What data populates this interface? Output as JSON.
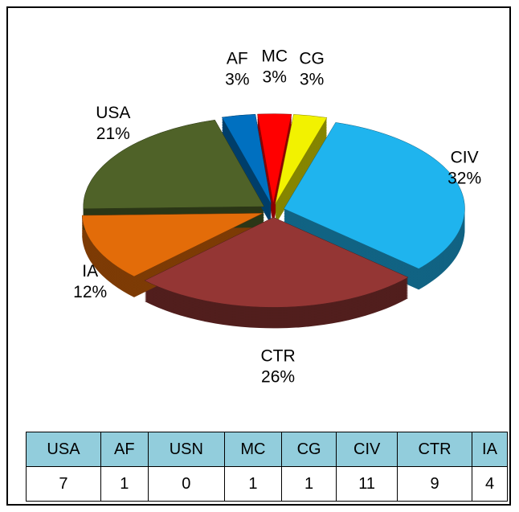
{
  "chart_data": {
    "type": "pie",
    "categories": [
      "MC",
      "CG",
      "CIV",
      "CTR",
      "IA",
      "USA",
      "AF"
    ],
    "values": [
      3,
      3,
      32,
      26,
      12,
      21,
      3
    ],
    "value_labels": [
      "3%",
      "3%",
      "32%",
      "26%",
      "12%",
      "21%",
      "3%"
    ],
    "colors": [
      "#ff0000",
      "#f2f200",
      "#1fb4ee",
      "#943634",
      "#e36c09",
      "#4f6228",
      "#0070c0"
    ]
  },
  "table": {
    "header": [
      "USA",
      "AF",
      "USN",
      "MC",
      "CG",
      "CIV",
      "CTR",
      "IA"
    ],
    "rows": [
      [
        "7",
        "1",
        "0",
        "1",
        "1",
        "11",
        "9",
        "4"
      ]
    ]
  }
}
